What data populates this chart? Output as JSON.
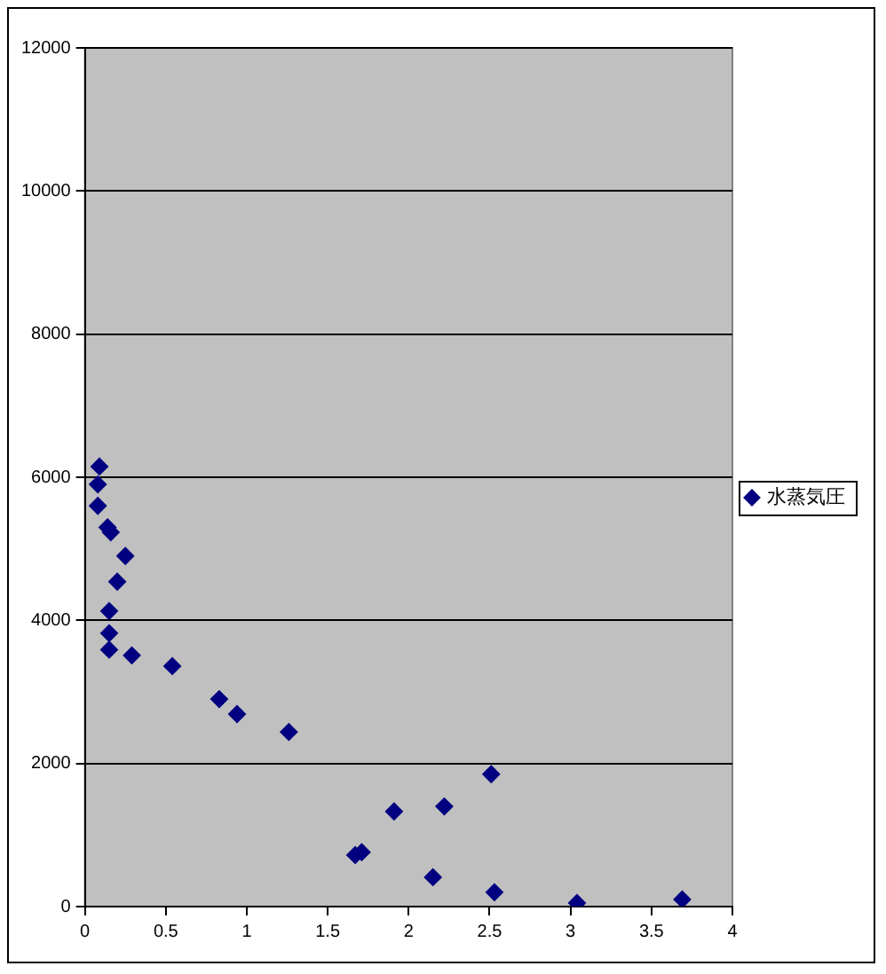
{
  "chart_data": {
    "type": "scatter",
    "xlim": [
      0,
      4
    ],
    "xticks": [
      0,
      0.5,
      1,
      1.5,
      2,
      2.5,
      3,
      3.5,
      4
    ],
    "ylim": [
      0,
      12000
    ],
    "yticks": [
      0,
      2000,
      4000,
      6000,
      8000,
      10000,
      12000
    ],
    "grid": "y",
    "legend": "right",
    "marker": "diamond",
    "series": [
      {
        "name": "水蒸気圧",
        "color": "#000080",
        "x": [
          0.09,
          0.08,
          0.08,
          0.14,
          0.16,
          0.25,
          0.2,
          0.15,
          0.15,
          0.15,
          0.29,
          0.54,
          0.83,
          0.94,
          1.26,
          2.51,
          1.91,
          2.22,
          1.67,
          1.71,
          2.15,
          2.53,
          3.04,
          3.69
        ],
        "values": [
          6150,
          5900,
          5600,
          5300,
          5230,
          4900,
          4540,
          4130,
          3820,
          3590,
          3510,
          3360,
          2900,
          2690,
          2440,
          1850,
          1330,
          1400,
          720,
          760,
          410,
          200,
          50,
          100
        ]
      }
    ]
  }
}
